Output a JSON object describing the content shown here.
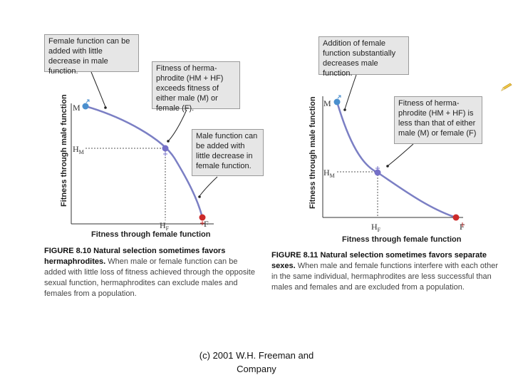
{
  "figure_left": {
    "callout_top": "Female function can be added with little decrease in male function.",
    "callout_middle": "Fitness of herma-phrodite (HM + HF) exceeds fitness of either male (M) or female (F).",
    "callout_bottom": "Male function can be added with little decrease in female function.",
    "y_axis_title": "Fitness through male function",
    "x_axis_title": "Fitness through female function",
    "labels": {
      "m": "M",
      "hm_main": "H",
      "hm_sub": "M",
      "hf_main": "H",
      "hf_sub": "F",
      "f": "F"
    },
    "caption_label": "FIGURE 8.10",
    "caption_title": "Natural selection sometimes favors hermaphrodites.",
    "caption_text": "When male or female function can be added with little loss of fitness achieved through the opposite sexual function, hermaphrodites can exclude males and females from a population."
  },
  "figure_right": {
    "callout_top": "Addition of female function substantially decreases male function.",
    "callout_middle": "Fitness of herma-phrodite (HM + HF) is less than that of either male (M) or female (F)",
    "y_axis_title": "Fitness through male function",
    "x_axis_title": "Fitness through female function",
    "labels": {
      "m": "M",
      "hm_main": "H",
      "hm_sub": "M",
      "hf_main": "H",
      "hf_sub": "F",
      "f": "F"
    },
    "caption_label": "FIGURE 8.11",
    "caption_title": "Natural selection sometimes favors separate sexes.",
    "caption_text": "When male and female functions interfere with each other in the same individual, hermaphrodites are less successful than males and females and are excluded from a population."
  },
  "footer": {
    "line1": "(c) 2001 W.H. Freeman and",
    "line2": "Company"
  },
  "colors": {
    "curve": "#7b7fc4",
    "male_dot": "#4a8fce",
    "female_dot": "#cc2a2a",
    "herm_dot": "#7570c8",
    "callout_bg": "#e6e6e6"
  },
  "icons": {
    "corner": "pencil-icon"
  }
}
